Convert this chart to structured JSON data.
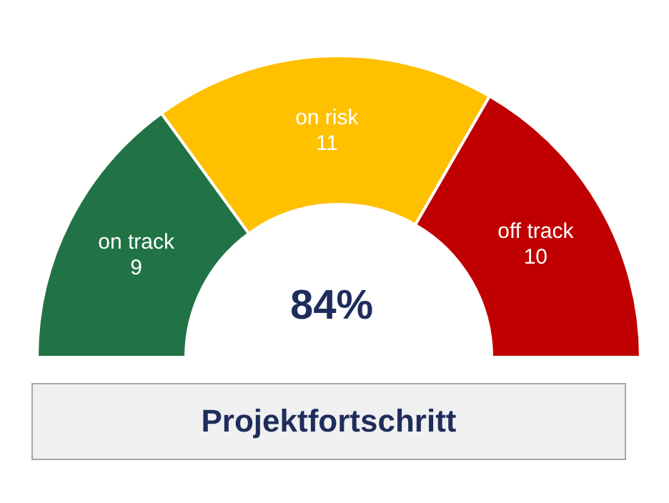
{
  "chart_data": {
    "type": "donut",
    "title": "Projektfortschritt",
    "categories": [
      "on track",
      "on risk",
      "off track"
    ],
    "values": [
      9,
      11,
      10
    ],
    "colors": [
      "#217346",
      "#ffc000",
      "#c00000"
    ],
    "data_labels": true,
    "annotations": [
      "84%"
    ]
  }
}
